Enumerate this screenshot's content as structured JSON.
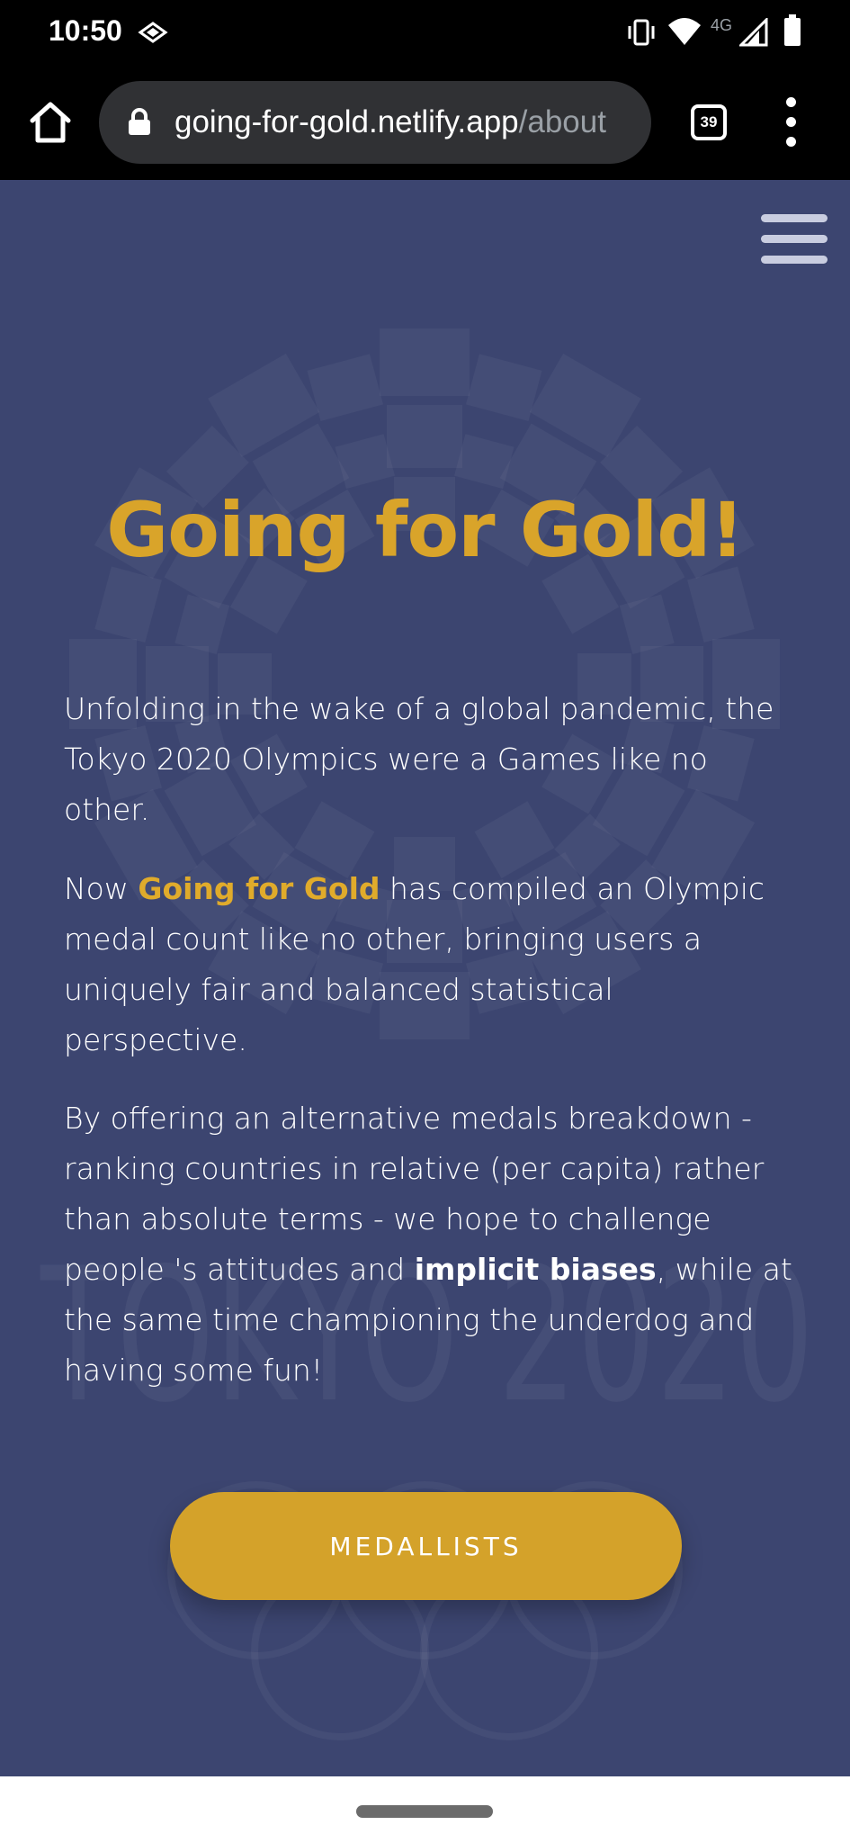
{
  "status_bar": {
    "time": "10:50",
    "network_label": "4G",
    "icons": [
      "data-saver-icon",
      "vibrate-icon",
      "wifi-icon",
      "cell-signal-icon",
      "battery-icon"
    ]
  },
  "browser": {
    "url_host": "going-for-gold.netlify.app",
    "url_path": "/about",
    "tab_count": "39",
    "icons": [
      "home-icon",
      "lock-icon",
      "overflow-menu-icon"
    ]
  },
  "page": {
    "title": "Going for Gold!",
    "paragraph1": "Unfolding in the wake of a global pandemic, the Tokyo 2020 Olympics were a Games like no other.",
    "paragraph2": {
      "before": "Now ",
      "highlight": "Going for Gold",
      "after": " has compiled an Olympic medal count like no other, bringing users a uniquely fair and balanced statistical perspective."
    },
    "paragraph3": {
      "before": "By offering an alternative medals breakdown - ranking countries in relative (per capita) rather than absolute terms - we hope to challenge people 's attitudes and ",
      "bold": "implicit biases",
      "after": ", while at the same time championing the underdog and having some fun!"
    },
    "cta_label": "MEDALLISTS",
    "background_watermark": "TOKYO 2020",
    "colors": {
      "background": "#3c4570",
      "gold": "#d9a42a",
      "button": "#d4a22a"
    }
  }
}
